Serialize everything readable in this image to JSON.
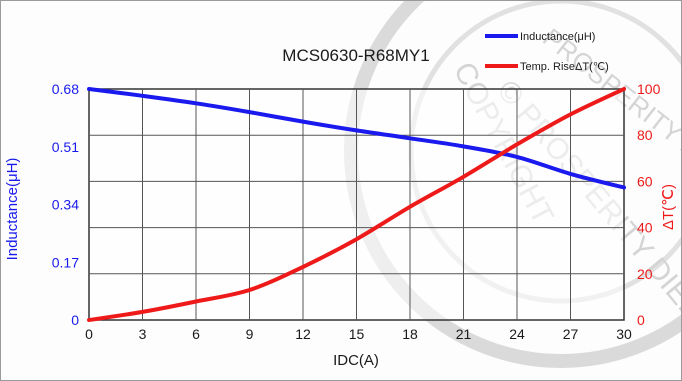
{
  "chart_data": {
    "type": "line",
    "title": "MCS0630-R68MY1",
    "xlabel": "IDC(A)",
    "ylabel_left": "Inductance(μH)",
    "ylabel_right": "ΔT(℃)",
    "x_ticks": [
      "0",
      "3",
      "6",
      "9",
      "12",
      "15",
      "18",
      "21",
      "24",
      "27",
      "30"
    ],
    "y_left_ticks": [
      "0",
      "0.17",
      "0.34",
      "0.51",
      "0.68"
    ],
    "y_right_ticks": [
      "0",
      "20",
      "40",
      "60",
      "80",
      "100"
    ],
    "xlim": [
      0,
      30
    ],
    "ylim_left": [
      0,
      0.68
    ],
    "ylim_right": [
      0,
      100
    ],
    "grid": true,
    "legend_position": "top-right",
    "series": [
      {
        "name": "Inductance(μH)",
        "axis": "left",
        "color": "#1a1aee",
        "x": [
          0,
          3,
          6,
          9,
          12,
          15,
          18,
          21,
          24,
          27,
          30
        ],
        "y": [
          0.68,
          0.66,
          0.638,
          0.612,
          0.584,
          0.558,
          0.535,
          0.511,
          0.48,
          0.43,
          0.39
        ]
      },
      {
        "name": "Temp. RiseΔT(℃)",
        "axis": "right",
        "color": "#ee1a1a",
        "x": [
          0,
          3,
          6,
          9,
          12,
          15,
          18,
          21,
          24,
          27,
          30
        ],
        "y": [
          0,
          3.5,
          8,
          13,
          23,
          35,
          49,
          62,
          76,
          89,
          100
        ]
      }
    ]
  },
  "colors": {
    "left_axis": "#1a1aee",
    "right_axis": "#ee1a1a",
    "grid": "#555555",
    "watermark": "#9a9a9a"
  },
  "watermark": {
    "lines": [
      "COPYRIGHT",
      "© PROSPERITY DIELEC",
      "PROSPERITY DIELECTRICS"
    ]
  }
}
